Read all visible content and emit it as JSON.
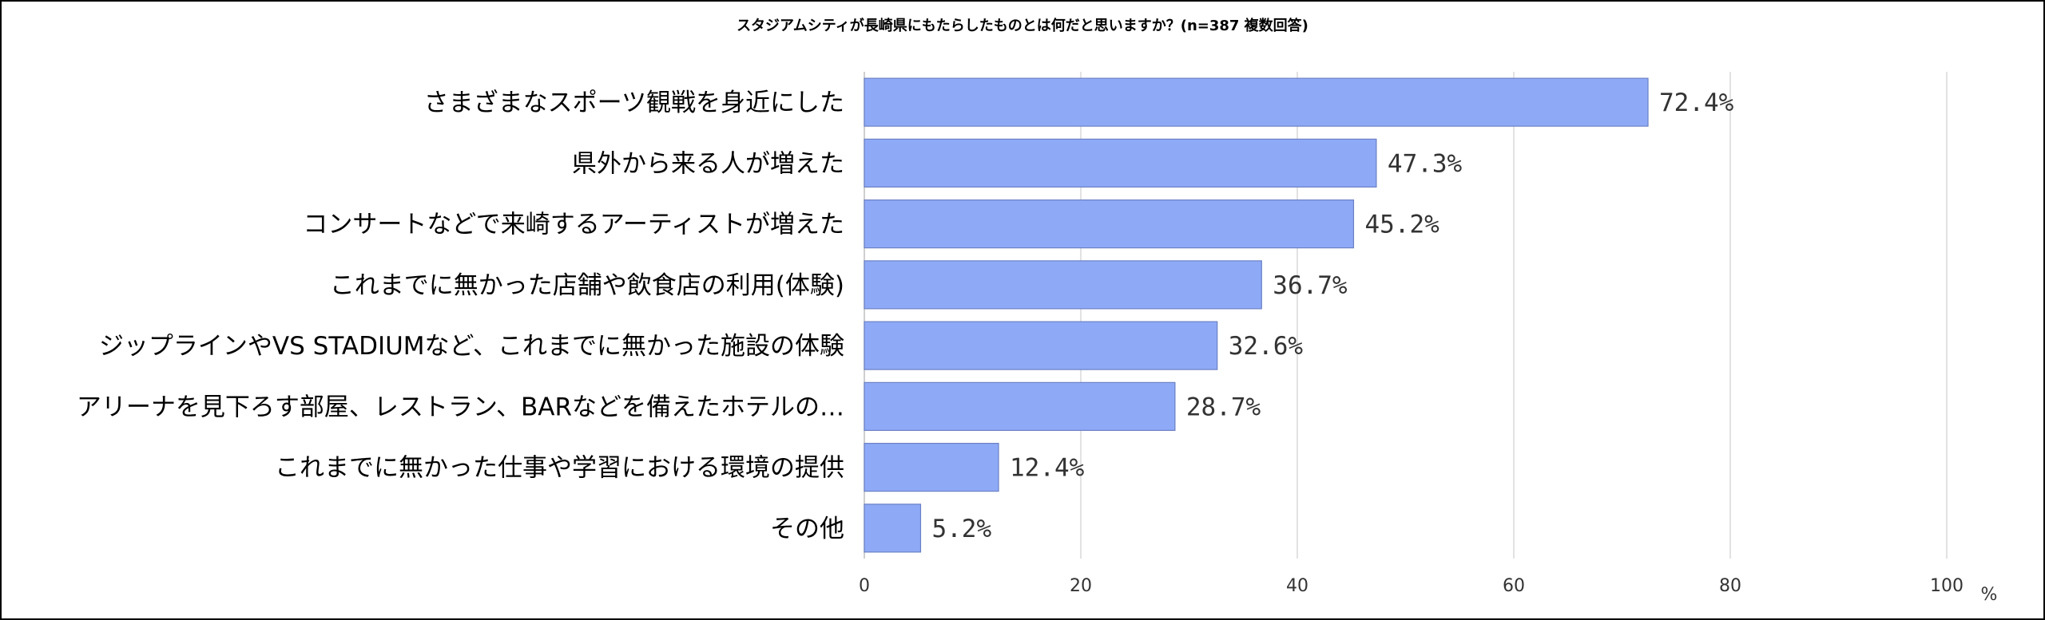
{
  "chart_data": {
    "type": "bar",
    "orientation": "horizontal",
    "title": "スタジアムシティが長崎県にもたらしたものとは何だと思いますか？(n=387 複数回答)",
    "categories": [
      "さまざまなスポーツ観戦を身近にした",
      "県外から来る人が増えた",
      "コンサートなどで来崎するアーティストが増えた",
      "これまでに無かった店舗や飲食店の利用(体験)",
      "ジップラインやVS STADIUMなど、これまでに無かった施設の体験",
      "アリーナを見下ろす部屋、レストラン、BARなどを備えたホテルの…",
      "これまでに無かった仕事や学習における環境の提供",
      "その他"
    ],
    "values": [
      72.4,
      47.3,
      45.2,
      36.7,
      32.6,
      28.7,
      12.4,
      5.2
    ],
    "value_labels": [
      "72.4%",
      "47.3%",
      "45.2%",
      "36.7%",
      "32.6%",
      "28.7%",
      "12.4%",
      "5.2%"
    ],
    "xlim": [
      0,
      100
    ],
    "x_ticks": [
      0,
      20,
      40,
      60,
      80,
      100
    ],
    "x_unit": "%",
    "grid": true,
    "bar_color": "#8eaaf7",
    "bar_edge_color": "#6a80c4"
  }
}
